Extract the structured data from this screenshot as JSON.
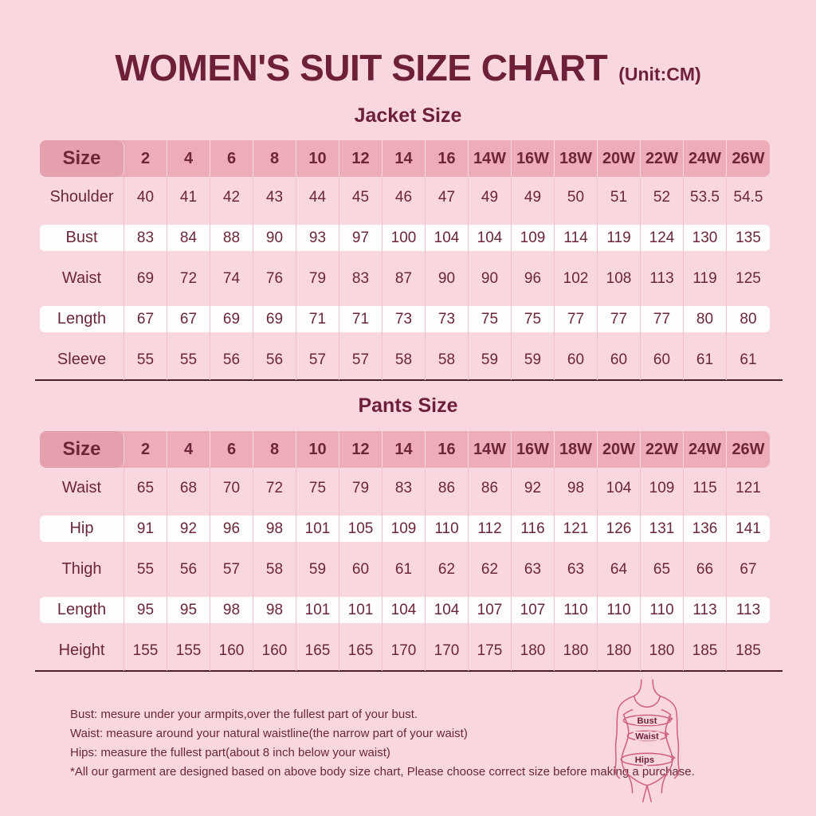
{
  "header": {
    "title": "WOMEN'S SUIT SIZE CHART",
    "unit": "(Unit:CM)"
  },
  "jacket": {
    "heading": "Jacket Size",
    "columns": [
      "Size",
      "2",
      "4",
      "6",
      "8",
      "10",
      "12",
      "14",
      "16",
      "14W",
      "16W",
      "18W",
      "20W",
      "22W",
      "24W",
      "26W"
    ],
    "rows": [
      {
        "label": "Shoulder",
        "values": [
          "40",
          "41",
          "42",
          "43",
          "44",
          "45",
          "46",
          "47",
          "49",
          "49",
          "50",
          "51",
          "52",
          "53.5",
          "54.5"
        ]
      },
      {
        "label": "Bust",
        "values": [
          "83",
          "84",
          "88",
          "90",
          "93",
          "97",
          "100",
          "104",
          "104",
          "109",
          "114",
          "119",
          "124",
          "130",
          "135"
        ]
      },
      {
        "label": "Waist",
        "values": [
          "69",
          "72",
          "74",
          "76",
          "79",
          "83",
          "87",
          "90",
          "90",
          "96",
          "102",
          "108",
          "113",
          "119",
          "125"
        ]
      },
      {
        "label": "Length",
        "values": [
          "67",
          "67",
          "69",
          "69",
          "71",
          "71",
          "73",
          "73",
          "75",
          "75",
          "77",
          "77",
          "77",
          "80",
          "80"
        ]
      },
      {
        "label": "Sleeve",
        "values": [
          "55",
          "55",
          "56",
          "56",
          "57",
          "57",
          "58",
          "58",
          "59",
          "59",
          "60",
          "60",
          "60",
          "61",
          "61"
        ]
      }
    ]
  },
  "pants": {
    "heading": "Pants Size",
    "columns": [
      "Size",
      "2",
      "4",
      "6",
      "8",
      "10",
      "12",
      "14",
      "16",
      "14W",
      "16W",
      "18W",
      "20W",
      "22W",
      "24W",
      "26W"
    ],
    "rows": [
      {
        "label": "Waist",
        "values": [
          "65",
          "68",
          "70",
          "72",
          "75",
          "79",
          "83",
          "86",
          "86",
          "92",
          "98",
          "104",
          "109",
          "115",
          "121"
        ]
      },
      {
        "label": "Hip",
        "values": [
          "91",
          "92",
          "96",
          "98",
          "101",
          "105",
          "109",
          "110",
          "112",
          "116",
          "121",
          "126",
          "131",
          "136",
          "141"
        ]
      },
      {
        "label": "Thigh",
        "values": [
          "55",
          "56",
          "57",
          "58",
          "59",
          "60",
          "61",
          "62",
          "62",
          "63",
          "63",
          "64",
          "65",
          "66",
          "67"
        ]
      },
      {
        "label": "Length",
        "values": [
          "95",
          "95",
          "98",
          "98",
          "101",
          "101",
          "104",
          "104",
          "107",
          "107",
          "110",
          "110",
          "110",
          "113",
          "113"
        ]
      },
      {
        "label": "Height",
        "values": [
          "155",
          "155",
          "160",
          "160",
          "165",
          "165",
          "170",
          "170",
          "175",
          "180",
          "180",
          "180",
          "180",
          "185",
          "185"
        ]
      }
    ]
  },
  "notes": [
    "Bust: mesure under your armpits,over the fullest part of your bust.",
    "Waist: measure around your natural waistline(the narrow part of your waist)",
    "Hips: measure the fullest part(about 8 inch below your waist)",
    "*All our garment are designed based on above body size chart, Please choose correct size before making a purchase."
  ],
  "figure": {
    "labels": {
      "bust": "Bust",
      "waist": "Waist",
      "hips": "Hips"
    }
  },
  "colors": {
    "background": "#f8d7de",
    "header_band": "#edacb8",
    "size_cell": "#e5a0ae",
    "text": "#6b2737",
    "title": "#6e2038",
    "white_strip": "#fdfdfd",
    "table_bottom_line": "#4e1d2a",
    "figure_outline": "#cf6080"
  }
}
